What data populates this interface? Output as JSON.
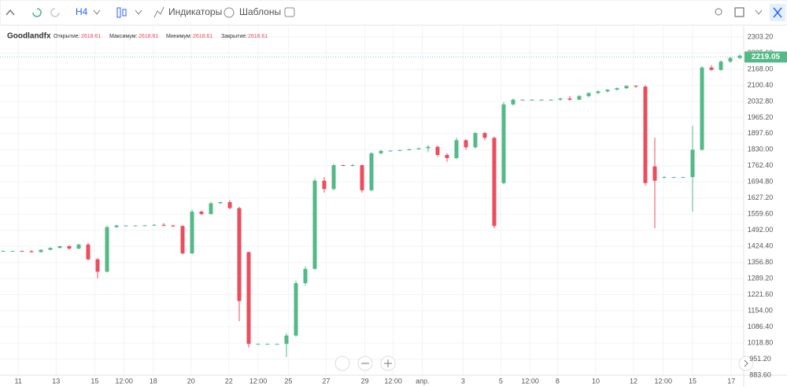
{
  "ui": {
    "toolbar": {
      "interval": "H4",
      "indicators": "Индикаторы",
      "templates": "Шаблоны"
    },
    "legend": {
      "symbol": "Goodlandfx",
      "open_label": "Открытие:",
      "open": "2618.61",
      "high_label": "Максимум:",
      "high": "2618.61",
      "low_label": "Минимум:",
      "low": "2618.61",
      "close_label": "Закрытие:",
      "close": "2618.61"
    }
  },
  "chart_data": {
    "type": "candlestick",
    "up_color": "#53b987",
    "down_color": "#eb4d5c",
    "grid": true,
    "ylim": [
      883.6,
      2349.4
    ],
    "yticks": [
      {
        "value": 2303.2,
        "label": "2303.20"
      },
      {
        "value": 2235.6,
        "label": "2235.60"
      },
      {
        "value": 2168,
        "label": "2168.00"
      },
      {
        "value": 2100.4,
        "label": "2100.40"
      },
      {
        "value": 2032.8,
        "label": "2032.80"
      },
      {
        "value": 1965.2,
        "label": "1965.20"
      },
      {
        "value": 1897.6,
        "label": "1897.60"
      },
      {
        "value": 1830,
        "label": "1830.00"
      },
      {
        "value": 1762.4,
        "label": "1762.40"
      },
      {
        "value": 1694.8,
        "label": "1694.80"
      },
      {
        "value": 1627.2,
        "label": "1627.20"
      },
      {
        "value": 1559.6,
        "label": "1559.60"
      },
      {
        "value": 1492,
        "label": "1492.00"
      },
      {
        "value": 1424.4,
        "label": "1424.40"
      },
      {
        "value": 1356.8,
        "label": "1356.80"
      },
      {
        "value": 1289.2,
        "label": "1289.20"
      },
      {
        "value": 1221.6,
        "label": "1221.60"
      },
      {
        "value": 1154,
        "label": "1154.00"
      },
      {
        "value": 1086.4,
        "label": "1086.40"
      },
      {
        "value": 1018.8,
        "label": "1018.80"
      },
      {
        "value": 951.2,
        "label": "951.20"
      },
      {
        "value": 883.6,
        "label": "883.60"
      }
    ],
    "xticks": [
      {
        "value": 1.6,
        "label": "11"
      },
      {
        "value": 5.6,
        "label": "13"
      },
      {
        "value": 9.7,
        "label": "15"
      },
      {
        "value": 12.8,
        "label": "12:00"
      },
      {
        "value": 15.9,
        "label": "18"
      },
      {
        "value": 19.9,
        "label": "20"
      },
      {
        "value": 23.9,
        "label": "22"
      },
      {
        "value": 27,
        "label": "12:00"
      },
      {
        "value": 30.2,
        "label": "25"
      },
      {
        "value": 34.2,
        "label": "27"
      },
      {
        "value": 38.3,
        "label": "29"
      },
      {
        "value": 41.3,
        "label": "12:00"
      },
      {
        "value": 44.4,
        "label": "апр."
      },
      {
        "value": 48.7,
        "label": "3"
      },
      {
        "value": 52.7,
        "label": "5"
      },
      {
        "value": 55.8,
        "label": "12:00"
      },
      {
        "value": 58.7,
        "label": "8"
      },
      {
        "value": 62.75,
        "label": "10"
      },
      {
        "value": 66.75,
        "label": "12"
      },
      {
        "value": 69.9,
        "label": "12:00"
      },
      {
        "value": 73,
        "label": "15"
      },
      {
        "value": 77.1,
        "label": "17"
      }
    ],
    "open": [
      1405,
      1405,
      1405,
      1404,
      1400,
      1410,
      1418,
      1425,
      1415,
      1432,
      1370,
      1318,
      1505,
      1512,
      1512,
      1512,
      1513,
      1515,
      1512,
      1510,
      1395,
      1570,
      1560,
      1605,
      1610,
      1585,
      1400,
      1015,
      1015,
      1015,
      1015,
      1050,
      1270,
      1330,
      1700,
      1665,
      1765,
      1763,
      1765,
      1660,
      1815,
      1825,
      1826,
      1828,
      1832,
      1836,
      1842,
      1808,
      1795,
      1870,
      1840,
      1900,
      1880,
      1690,
      2020,
      2040,
      2040,
      2040,
      2040,
      2040,
      2045,
      2040,
      2055,
      2068,
      2075,
      2082,
      2088,
      2098,
      2095,
      1760,
      1715,
      1715,
      1715,
      1715,
      1830,
      2175,
      2165,
      2200,
      2215,
      2225
    ],
    "high": [
      1407,
      1406,
      1406,
      1408,
      1412,
      1420,
      1428,
      1430,
      1435,
      1440,
      1375,
      1512,
      1515,
      1513,
      1513,
      1514,
      1518,
      1522,
      1515,
      1512,
      1578,
      1575,
      1612,
      1612,
      1618,
      1590,
      1402,
      1017,
      1016,
      1016,
      1060,
      1280,
      1340,
      1710,
      1715,
      1770,
      1768,
      1770,
      1768,
      1820,
      1830,
      1828,
      1830,
      1834,
      1838,
      1850,
      1848,
      1815,
      1880,
      1875,
      1905,
      1905,
      1885,
      2030,
      2045,
      2042,
      2042,
      2042,
      2042,
      2048,
      2055,
      2060,
      2070,
      2080,
      2085,
      2092,
      2100,
      2102,
      2100,
      1880,
      1720,
      1716,
      1716,
      1930,
      2180,
      2185,
      2205,
      2220,
      2230,
      2228
    ],
    "low": [
      1403,
      1404,
      1403,
      1398,
      1399,
      1408,
      1415,
      1410,
      1412,
      1365,
      1290,
      1315,
      1503,
      1511,
      1511,
      1510,
      1510,
      1508,
      1505,
      1390,
      1392,
      1555,
      1558,
      1603,
      1580,
      1110,
      1000,
      1013,
      1014,
      1014,
      960,
      1045,
      1260,
      1325,
      1650,
      1660,
      1762,
      1760,
      1650,
      1655,
      1810,
      1824,
      1825,
      1827,
      1830,
      1820,
      1800,
      1780,
      1790,
      1830,
      1835,
      1870,
      1500,
      1685,
      2015,
      2038,
      2038,
      2038,
      2038,
      2035,
      2035,
      2038,
      2050,
      2062,
      2070,
      2078,
      2085,
      2090,
      1680,
      1500,
      1712,
      1714,
      1714,
      1570,
      1825,
      2160,
      2160,
      2195,
      2210,
      2215
    ],
    "close": [
      1405,
      1405,
      1404,
      1400,
      1410,
      1418,
      1425,
      1415,
      1432,
      1370,
      1318,
      1505,
      1512,
      1512,
      1512,
      1513,
      1515,
      1512,
      1510,
      1395,
      1570,
      1560,
      1605,
      1610,
      1585,
      1195,
      1015,
      1015,
      1015,
      1015,
      1050,
      1270,
      1330,
      1700,
      1665,
      1765,
      1763,
      1765,
      1660,
      1815,
      1825,
      1826,
      1828,
      1832,
      1836,
      1842,
      1808,
      1795,
      1870,
      1840,
      1900,
      1880,
      1510,
      2020,
      2040,
      2040,
      2040,
      2040,
      2040,
      2045,
      2040,
      2055,
      2068,
      2075,
      2082,
      2088,
      2098,
      2095,
      1690,
      1700,
      1715,
      1715,
      1715,
      1830,
      2175,
      2165,
      2200,
      2215,
      2225,
      2219.05
    ]
  }
}
